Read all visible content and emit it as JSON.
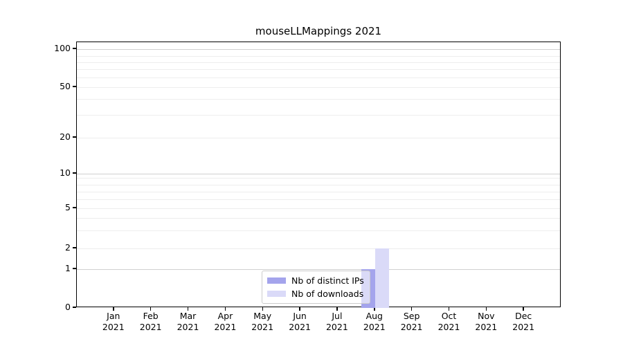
{
  "chart_data": {
    "type": "bar",
    "title": "mouseLLMappings 2021",
    "xlabel": "",
    "ylabel": "",
    "categories": [
      "Jan 2021",
      "Feb 2021",
      "Mar 2021",
      "Apr 2021",
      "May 2021",
      "Jun 2021",
      "Jul 2021",
      "Aug 2021",
      "Sep 2021",
      "Oct 2021",
      "Nov 2021",
      "Dec 2021"
    ],
    "series": [
      {
        "name": "Nb of distinct IPs",
        "color": "#a4a4ec",
        "values": [
          0,
          0,
          0,
          0,
          0,
          0,
          0,
          1,
          0,
          0,
          0,
          0
        ]
      },
      {
        "name": "Nb of downloads",
        "color": "#dadaf8",
        "values": [
          0,
          0,
          0,
          0,
          0,
          0,
          0,
          2,
          0,
          0,
          0,
          0
        ]
      }
    ],
    "y_axis": {
      "scale": "symlog",
      "range_top_value": 120,
      "ticks": [
        {
          "value": 100,
          "label": "100",
          "pos": 0.026,
          "major": true
        },
        {
          "value": 50,
          "label": "50",
          "pos": 0.169,
          "major": false
        },
        {
          "value": 20,
          "label": "20",
          "pos": 0.359,
          "major": false
        },
        {
          "value": 10,
          "label": "10",
          "pos": 0.495,
          "major": true
        },
        {
          "value": 5,
          "label": "5",
          "pos": 0.625,
          "major": false
        },
        {
          "value": 2,
          "label": "2",
          "pos": 0.776,
          "major": false
        },
        {
          "value": 1,
          "label": "1",
          "pos": 0.854,
          "major": true
        },
        {
          "value": 0,
          "label": "0",
          "pos": 1.0,
          "major": false
        }
      ],
      "minor_grid_pos": [
        0.052,
        0.0755,
        0.1016,
        0.1328,
        0.2135,
        0.273,
        0.51,
        0.536,
        0.5625,
        0.591,
        0.661,
        0.708
      ]
    },
    "grid": true,
    "legend": {
      "position": "lower center"
    }
  }
}
